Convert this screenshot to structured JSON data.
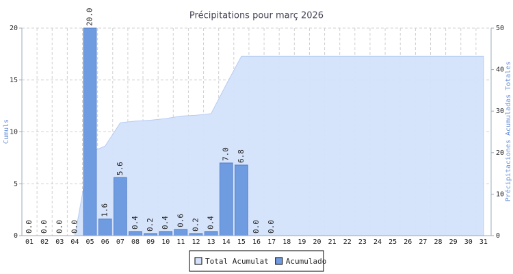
{
  "chart_data": {
    "type": "bar",
    "title": "Précipitations pour març 2026",
    "ylabel": "Cumuls",
    "y2label": "Précipitaciones Acumuladas Totales",
    "categories": [
      "01",
      "02",
      "03",
      "04",
      "05",
      "06",
      "07",
      "08",
      "09",
      "10",
      "11",
      "12",
      "13",
      "14",
      "15",
      "16",
      "17",
      "18",
      "19",
      "20",
      "21",
      "22",
      "23",
      "24",
      "25",
      "26",
      "27",
      "28",
      "29",
      "30",
      "31"
    ],
    "series": [
      {
        "name": "Total Acumulat",
        "type": "area",
        "axis": "y2",
        "color": "#d3e1fb",
        "values": [
          0,
          0,
          0,
          0,
          20,
          21.6,
          27.2,
          27.6,
          27.8,
          28.2,
          28.8,
          29.0,
          29.4,
          36.4,
          43.2,
          43.2,
          43.2,
          43.2,
          43.2,
          43.2,
          43.2,
          43.2,
          43.2,
          43.2,
          43.2,
          43.2,
          43.2,
          43.2,
          43.2,
          43.2,
          43.2
        ]
      },
      {
        "name": "Acumulado",
        "type": "bar",
        "color": "#6f9be0",
        "values": [
          0,
          0,
          0,
          0,
          20,
          1.6,
          5.6,
          0.4,
          0.2,
          0.4,
          0.6,
          0.2,
          0.4,
          7,
          6.8,
          0,
          0,
          null,
          null,
          null,
          null,
          null,
          null,
          null,
          null,
          null,
          null,
          null,
          null,
          null,
          null
        ],
        "value_labels": [
          "0.0",
          "0.0",
          "0.0",
          "0.0",
          "20.0",
          "1.6",
          "5.6",
          "0.4",
          "0.2",
          "0.4",
          "0.6",
          "0.2",
          "0.4",
          "7.0",
          "6.8",
          "0.0",
          "0.0",
          null,
          null,
          null,
          null,
          null,
          null,
          null,
          null,
          null,
          null,
          null,
          null,
          null,
          null
        ]
      }
    ],
    "ylim": [
      0,
      20
    ],
    "yticks": [
      0,
      5,
      10,
      15,
      20
    ],
    "y2lim": [
      0,
      50
    ],
    "y2ticks": [
      0,
      10,
      20,
      30,
      40,
      50
    ],
    "grid": true,
    "legend": "bottom"
  }
}
